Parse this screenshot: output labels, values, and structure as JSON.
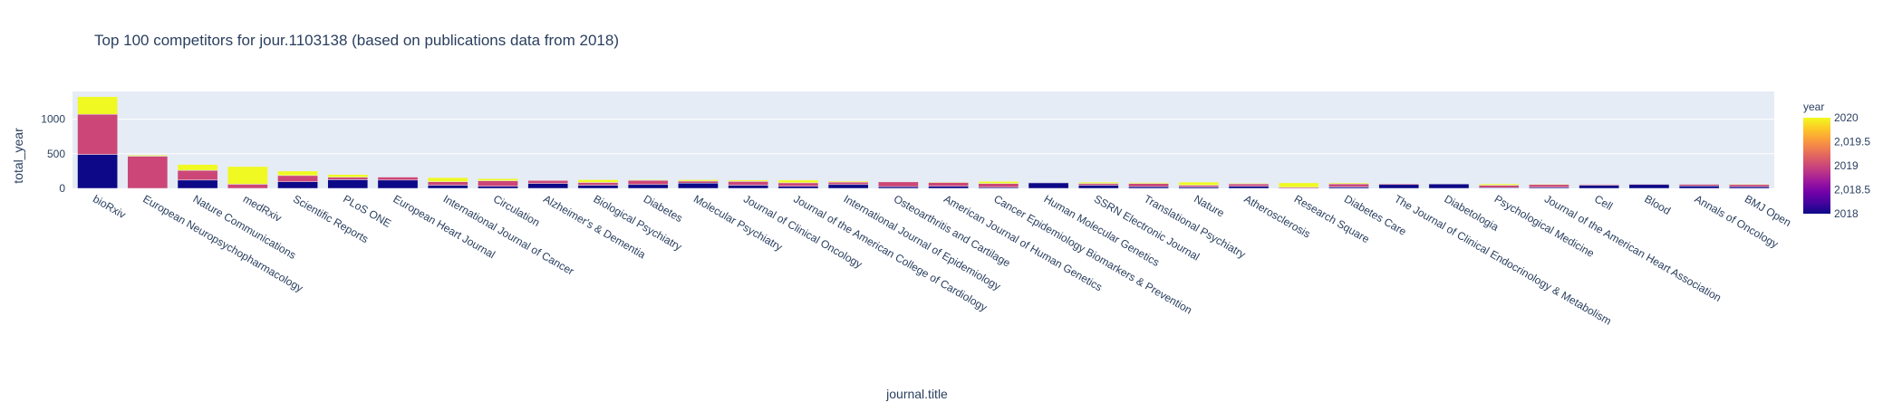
{
  "chart_data": {
    "type": "bar",
    "barmode": "stack",
    "title": "Top 100 competitors for jour.1103138 (based on publications data from 2018)",
    "xlabel": "journal.title",
    "ylabel": "total_year",
    "ylim": [
      0,
      1400
    ],
    "yticks": [
      0,
      500,
      1000
    ],
    "grid": true,
    "colorbar": {
      "title": "year",
      "ticks": [
        "2020",
        "2,019.5",
        "2019",
        "2,018.5",
        "2018"
      ],
      "colors": {
        "2018": "#0d0887",
        "2019": "#cc4778",
        "2020": "#f0f921"
      }
    },
    "categories": [
      "bioRxiv",
      "European Neuropsychopharmacology",
      "Nature Communications",
      "medRxiv",
      "Scientific Reports",
      "PLoS ONE",
      "European Heart Journal",
      "International Journal of Cancer",
      "Circulation",
      "Alzheimer's & Dementia",
      "Biological Psychiatry",
      "Diabetes",
      "Molecular Psychiatry",
      "Journal of Clinical Oncology",
      "Journal of the American College of Cardiology",
      "International Journal of Epidemiology",
      "Osteoarthritis and Cartilage",
      "American Journal of Human Genetics",
      "Cancer Epidemiology Biomarkers & Prevention",
      "Human Molecular Genetics",
      "SSRN Electronic Journal",
      "Translational Psychiatry",
      "Nature",
      "Atherosclerosis",
      "Research Square",
      "Diabetes Care",
      "The Journal of Clinical Endocrinology & Metabolism",
      "Diabetologia",
      "Psychological Medicine",
      "Journal of the American Heart Association",
      "Cell",
      "Blood",
      "Annals of Oncology",
      "BMJ Open"
    ],
    "series": [
      {
        "name": "2018",
        "values": [
          490,
          0,
          120,
          0,
          95,
          125,
          120,
          45,
          30,
          70,
          45,
          55,
          75,
          45,
          30,
          55,
          25,
          30,
          15,
          80,
          45,
          25,
          20,
          30,
          0,
          20,
          55,
          65,
          10,
          15,
          45,
          55,
          35,
          25
        ]
      },
      {
        "name": "2019",
        "values": [
          580,
          465,
          140,
          60,
          90,
          35,
          45,
          50,
          80,
          45,
          40,
          60,
          30,
          55,
          50,
          35,
          70,
          55,
          55,
          10,
          25,
          45,
          25,
          35,
          15,
          45,
          15,
          5,
          35,
          40,
          15,
          10,
          25,
          30
        ]
      },
      {
        "name": "2020",
        "values": [
          255,
          15,
          85,
          255,
          65,
          40,
          5,
          60,
          30,
          5,
          40,
          10,
          20,
          20,
          40,
          15,
          5,
          10,
          30,
          5,
          20,
          15,
          45,
          10,
          65,
          15,
          5,
          5,
          20,
          10,
          5,
          0,
          5,
          10
        ]
      }
    ]
  }
}
